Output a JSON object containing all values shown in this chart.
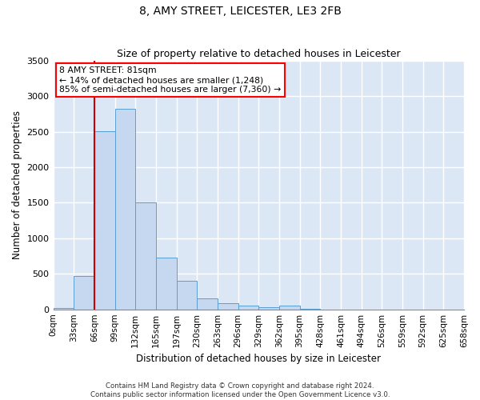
{
  "title": "8, AMY STREET, LEICESTER, LE3 2FB",
  "subtitle": "Size of property relative to detached houses in Leicester",
  "xlabel": "Distribution of detached houses by size in Leicester",
  "ylabel": "Number of detached properties",
  "bar_values": [
    20,
    470,
    2510,
    2820,
    1510,
    730,
    400,
    155,
    90,
    55,
    25,
    50,
    10,
    0,
    0,
    0,
    0,
    0,
    0,
    0
  ],
  "bin_labels": [
    "0sqm",
    "33sqm",
    "66sqm",
    "99sqm",
    "132sqm",
    "165sqm",
    "197sqm",
    "230sqm",
    "263sqm",
    "296sqm",
    "329sqm",
    "362sqm",
    "395sqm",
    "428sqm",
    "461sqm",
    "494sqm",
    "526sqm",
    "559sqm",
    "592sqm",
    "625sqm",
    "658sqm"
  ],
  "bar_color": "#c5d8f0",
  "bar_edge_color": "#5a9fd4",
  "bg_color": "#dce7f5",
  "grid_color": "#ffffff",
  "vline_color": "#cc0000",
  "vline_x": 2,
  "annotation_text_line1": "8 AMY STREET: 81sqm",
  "annotation_text_line2": "← 14% of detached houses are smaller (1,248)",
  "annotation_text_line3": "85% of semi-detached houses are larger (7,360) →",
  "footer_line1": "Contains HM Land Registry data © Crown copyright and database right 2024.",
  "footer_line2": "Contains public sector information licensed under the Open Government Licence v3.0.",
  "ylim": [
    0,
    3500
  ],
  "yticks": [
    0,
    500,
    1000,
    1500,
    2000,
    2500,
    3000,
    3500
  ]
}
